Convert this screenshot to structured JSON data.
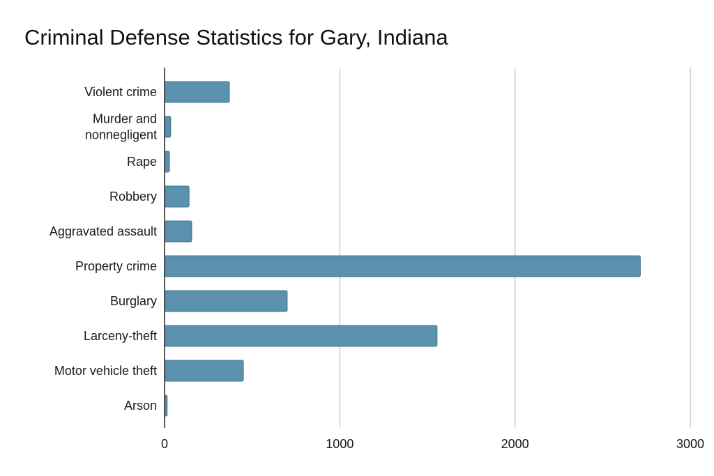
{
  "chart_data": {
    "type": "bar",
    "orientation": "horizontal",
    "title": "Criminal Defense Statistics for Gary, Indiana",
    "xlabel": "",
    "ylabel": "",
    "categories": [
      "Violent crime",
      "Murder and nonnegligent",
      "Rape",
      "Robbery",
      "Aggravated assault",
      "Property crime",
      "Burglary",
      "Larceny-theft",
      "Motor vehicle theft",
      "Arson"
    ],
    "category_lines": [
      [
        "Violent crime"
      ],
      [
        "Murder and",
        "nonnegligent"
      ],
      [
        "Rape"
      ],
      [
        "Robbery"
      ],
      [
        "Aggravated assault"
      ],
      [
        "Property crime"
      ],
      [
        "Burglary"
      ],
      [
        "Larceny-theft"
      ],
      [
        "Motor vehicle theft"
      ],
      [
        "Arson"
      ]
    ],
    "values": [
      370,
      35,
      28,
      140,
      155,
      2715,
      700,
      1555,
      450,
      15
    ],
    "xlim": [
      0,
      3000
    ],
    "xticks": [
      0,
      1000,
      2000,
      3000
    ],
    "xtick_labels": [
      "0",
      "1000",
      "2000",
      "3000"
    ],
    "grid": "vertical",
    "legend": "none",
    "bar_color": "#5b91ad",
    "bar_edge_color": "#3f7690",
    "grid_color": "#cccccc",
    "axis_color": "#222222"
  }
}
